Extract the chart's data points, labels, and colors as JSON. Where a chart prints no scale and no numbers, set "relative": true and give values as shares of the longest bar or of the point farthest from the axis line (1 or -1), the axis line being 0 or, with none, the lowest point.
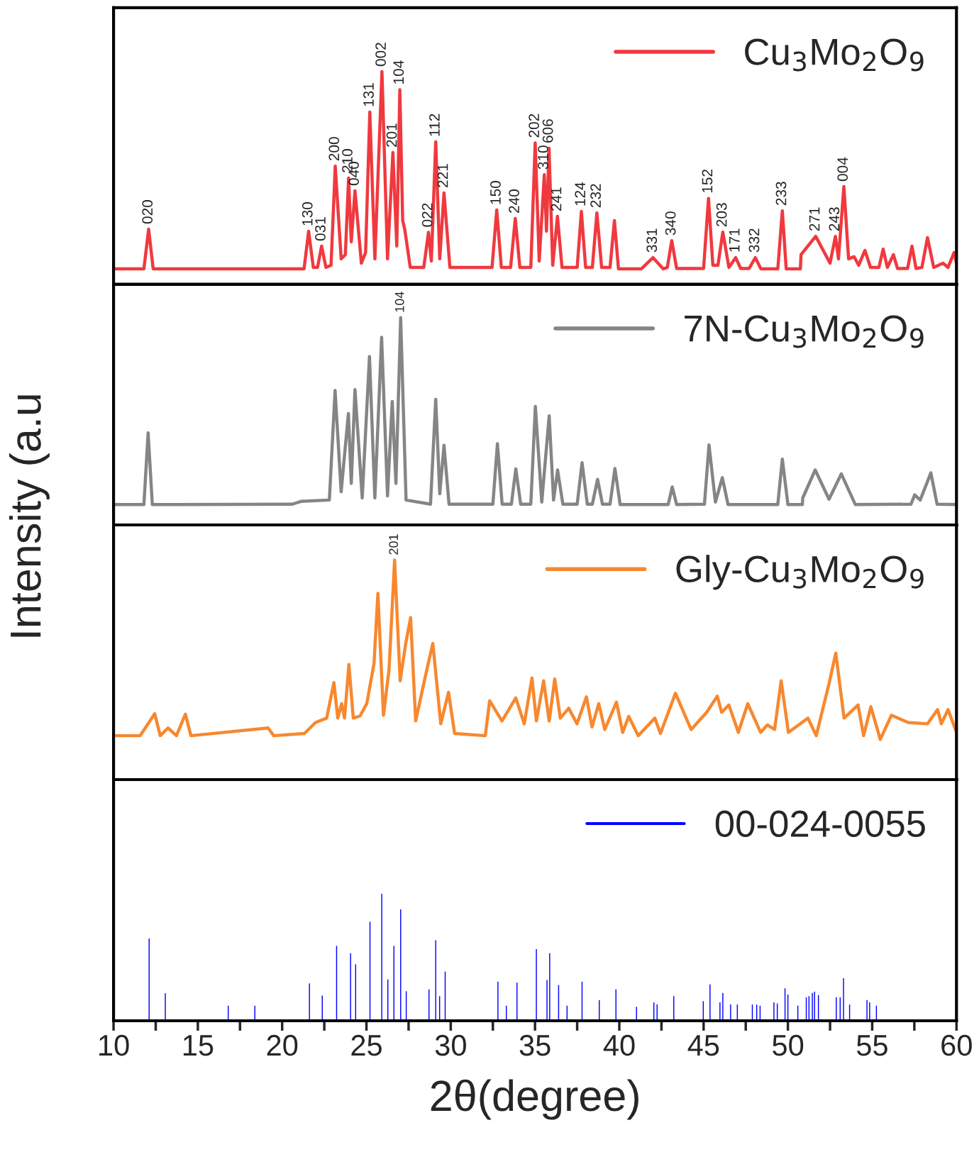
{
  "chart_data": [
    {
      "type": "line",
      "relative": true,
      "xlim": [
        10,
        60
      ],
      "tick_labels": false,
      "legend": "top right",
      "grid": false,
      "ylabel": "Intensity (a.u",
      "series": [
        {
          "name": "Cu$_{3}$Mo$_{2}$O$_{9}$",
          "color": "#f0393f",
          "x": [
            10,
            11.8,
            12.08,
            12.35,
            21.3,
            21.57,
            21.85,
            22.1,
            22.34,
            22.6,
            22.9,
            23.15,
            23.5,
            23.75,
            23.94,
            24.1,
            24.32,
            24.7,
            24.95,
            25.2,
            25.5,
            25.92,
            26.25,
            26.57,
            26.8,
            26.98,
            27.15,
            27.27,
            27.6,
            28.4,
            28.68,
            28.85,
            29.11,
            29.35,
            29.6,
            29.95,
            32.45,
            32.73,
            33.0,
            33.55,
            33.83,
            34.1,
            34.75,
            35.01,
            35.25,
            35.55,
            35.68,
            35.83,
            36.05,
            36.33,
            36.6,
            37.5,
            37.75,
            38.0,
            38.4,
            38.67,
            38.95,
            39.45,
            39.71,
            39.95,
            41.3,
            42.0,
            42.6,
            42.85,
            43.11,
            43.4,
            45.0,
            45.29,
            45.55,
            45.85,
            46.14,
            46.5,
            46.9,
            47.2,
            47.7,
            48.07,
            48.4,
            49.4,
            49.67,
            49.9,
            50.74,
            50.78,
            51.65,
            52.5,
            52.82,
            53.0,
            53.32,
            53.6,
            53.93,
            54.2,
            54.57,
            54.9,
            55.4,
            55.65,
            55.9,
            56.26,
            56.5,
            57.1,
            57.36,
            57.6,
            57.95,
            58.28,
            58.65,
            59.2,
            59.5,
            59.86,
            60
          ],
          "values": [
            0.073,
            0.073,
            0.26,
            0.073,
            0.073,
            0.25,
            0.08,
            0.08,
            0.18,
            0.08,
            0.09,
            0.556,
            0.12,
            0.14,
            0.5,
            0.2,
            0.44,
            0.1,
            0.15,
            0.81,
            0.12,
            1.0,
            0.12,
            0.62,
            0.18,
            0.915,
            0.3,
            0.26,
            0.08,
            0.08,
            0.245,
            0.11,
            0.67,
            0.12,
            0.43,
            0.08,
            0.08,
            0.35,
            0.08,
            0.08,
            0.31,
            0.08,
            0.08,
            0.665,
            0.11,
            0.516,
            0.25,
            0.64,
            0.09,
            0.32,
            0.08,
            0.08,
            0.343,
            0.08,
            0.08,
            0.336,
            0.08,
            0.08,
            0.3,
            0.073,
            0.073,
            0.126,
            0.073,
            0.08,
            0.206,
            0.075,
            0.075,
            0.404,
            0.09,
            0.09,
            0.246,
            0.08,
            0.126,
            0.075,
            0.075,
            0.126,
            0.073,
            0.073,
            0.346,
            0.073,
            0.073,
            0.14,
            0.226,
            0.1,
            0.226,
            0.12,
            0.46,
            0.12,
            0.13,
            0.09,
            0.16,
            0.08,
            0.08,
            0.166,
            0.08,
            0.14,
            0.075,
            0.075,
            0.18,
            0.075,
            0.08,
            0.22,
            0.08,
            0.1,
            0.08,
            0.15,
            0.1
          ]
        }
      ],
      "annotations": [
        {
          "text": "020",
          "x": 12.08,
          "y": 0.26
        },
        {
          "text": "130",
          "x": 21.57,
          "y": 0.25
        },
        {
          "text": "031",
          "x": 22.34,
          "y": 0.18
        },
        {
          "text": "200",
          "x": 23.15,
          "y": 0.556
        },
        {
          "text": "210",
          "x": 23.94,
          "y": 0.5
        },
        {
          "text": "040",
          "x": 24.32,
          "y": 0.44
        },
        {
          "text": "131",
          "x": 25.2,
          "y": 0.81
        },
        {
          "text": "002",
          "x": 25.92,
          "y": 1.0
        },
        {
          "text": "201",
          "x": 26.57,
          "y": 0.62
        },
        {
          "text": "104",
          "x": 26.98,
          "y": 0.915
        },
        {
          "text": "022",
          "x": 28.68,
          "y": 0.245
        },
        {
          "text": "112",
          "x": 29.11,
          "y": 0.67
        },
        {
          "text": "221",
          "x": 29.6,
          "y": 0.43
        },
        {
          "text": "150",
          "x": 32.73,
          "y": 0.35
        },
        {
          "text": "240",
          "x": 33.83,
          "y": 0.31
        },
        {
          "text": "202",
          "x": 35.01,
          "y": 0.665
        },
        {
          "text": "310",
          "x": 35.55,
          "y": 0.516
        },
        {
          "text": "606",
          "x": 35.83,
          "y": 0.64
        },
        {
          "text": "241",
          "x": 36.33,
          "y": 0.32
        },
        {
          "text": "124",
          "x": 37.75,
          "y": 0.343
        },
        {
          "text": "232",
          "x": 38.67,
          "y": 0.336
        },
        {
          "text": "331",
          "x": 42.0,
          "y": 0.126
        },
        {
          "text": "340",
          "x": 43.11,
          "y": 0.206
        },
        {
          "text": "152",
          "x": 45.29,
          "y": 0.404
        },
        {
          "text": "203",
          "x": 46.14,
          "y": 0.246
        },
        {
          "text": "171",
          "x": 46.9,
          "y": 0.126
        },
        {
          "text": "332",
          "x": 48.07,
          "y": 0.126
        },
        {
          "text": "233",
          "x": 49.67,
          "y": 0.346
        },
        {
          "text": "271",
          "x": 51.65,
          "y": 0.226
        },
        {
          "text": "243",
          "x": 52.82,
          "y": 0.226
        },
        {
          "text": "004",
          "x": 53.32,
          "y": 0.46
        }
      ]
    },
    {
      "type": "line",
      "relative": true,
      "xlim": [
        10,
        60
      ],
      "tick_labels": false,
      "legend": "top right",
      "grid": false,
      "series": [
        {
          "name": "7N-Cu$_{3}$Mo$_{2}$O$_{9}$",
          "color": "#858585",
          "x": [
            10,
            11.8,
            12.05,
            12.3,
            20.6,
            21.15,
            22.8,
            23.14,
            23.5,
            23.93,
            24.1,
            24.32,
            24.75,
            25.18,
            25.5,
            25.9,
            26.25,
            26.53,
            26.75,
            27.03,
            27.35,
            28.8,
            29.11,
            29.35,
            29.6,
            29.9,
            32.5,
            32.77,
            33.05,
            33.6,
            33.86,
            34.15,
            34.75,
            35.02,
            35.4,
            35.84,
            36.1,
            36.34,
            36.65,
            37.5,
            37.79,
            38.1,
            38.4,
            38.71,
            39.0,
            39.45,
            39.74,
            40.05,
            42.9,
            43.14,
            43.4,
            45.05,
            45.32,
            45.7,
            46.11,
            46.45,
            49.4,
            49.67,
            50.0,
            50.86,
            50.88,
            51.62,
            52.44,
            53.17,
            54.0,
            57.3,
            57.52,
            57.85,
            58.48,
            58.85,
            60
          ],
          "values": [
            0.098,
            0.098,
            0.444,
            0.098,
            0.1,
            0.114,
            0.12,
            0.648,
            0.16,
            0.537,
            0.2,
            0.653,
            0.13,
            0.812,
            0.13,
            0.905,
            0.14,
            0.595,
            0.2,
            1.0,
            0.12,
            0.1,
            0.606,
            0.15,
            0.384,
            0.1,
            0.1,
            0.392,
            0.1,
            0.1,
            0.27,
            0.1,
            0.1,
            0.571,
            0.11,
            0.526,
            0.12,
            0.265,
            0.1,
            0.1,
            0.3,
            0.1,
            0.1,
            0.22,
            0.1,
            0.1,
            0.272,
            0.098,
            0.098,
            0.183,
            0.098,
            0.1,
            0.386,
            0.11,
            0.228,
            0.098,
            0.098,
            0.317,
            0.098,
            0.098,
            0.13,
            0.265,
            0.124,
            0.246,
            0.098,
            0.1,
            0.145,
            0.12,
            0.251,
            0.1,
            0.098
          ]
        }
      ],
      "annotations": [
        {
          "text": "104",
          "x": 27.03,
          "y": 1.0
        }
      ]
    },
    {
      "type": "line",
      "relative": true,
      "xlim": [
        10,
        60
      ],
      "tick_labels": false,
      "legend": "top right",
      "grid": false,
      "series": [
        {
          "name": "Gly-Cu$_{3}$Mo$_{2}$O$_{9}$",
          "color": "#f7882f",
          "x": [
            10,
            11.58,
            12.44,
            12.77,
            13.23,
            13.73,
            14.26,
            14.59,
            19.17,
            19.5,
            21.32,
            21.98,
            22.64,
            23.07,
            23.3,
            23.53,
            23.7,
            23.96,
            24.22,
            24.62,
            25.02,
            25.45,
            25.68,
            26.01,
            26.34,
            26.67,
            27.0,
            27.33,
            27.62,
            27.92,
            28.58,
            28.94,
            29.41,
            29.87,
            30.23,
            32.05,
            32.31,
            33.04,
            33.86,
            34.36,
            34.82,
            35.08,
            35.51,
            35.84,
            36.17,
            36.5,
            37.0,
            37.49,
            38.05,
            38.38,
            38.78,
            39.14,
            39.83,
            40.2,
            40.56,
            41.12,
            42.11,
            42.44,
            43.33,
            44.26,
            45.18,
            45.81,
            46.07,
            46.5,
            47.06,
            47.62,
            48.38,
            48.78,
            49.21,
            49.6,
            50.03,
            51.19,
            51.68,
            52.44,
            52.84,
            53.33,
            54.16,
            54.49,
            54.92,
            55.48,
            56.14,
            57.13,
            58.28,
            58.88,
            59.1,
            59.5,
            60
          ],
          "values": [
            0.2,
            0.2,
            0.3,
            0.2,
            0.235,
            0.2,
            0.298,
            0.2,
            0.235,
            0.2,
            0.21,
            0.26,
            0.28,
            0.442,
            0.28,
            0.346,
            0.28,
            0.524,
            0.28,
            0.29,
            0.346,
            0.529,
            0.848,
            0.293,
            0.5,
            1.0,
            0.45,
            0.62,
            0.738,
            0.267,
            0.5,
            0.62,
            0.254,
            0.398,
            0.21,
            0.2,
            0.359,
            0.267,
            0.372,
            0.254,
            0.463,
            0.267,
            0.45,
            0.267,
            0.458,
            0.28,
            0.325,
            0.254,
            0.377,
            0.24,
            0.346,
            0.228,
            0.353,
            0.215,
            0.288,
            0.2,
            0.28,
            0.21,
            0.393,
            0.228,
            0.306,
            0.38,
            0.306,
            0.34,
            0.215,
            0.346,
            0.215,
            0.249,
            0.228,
            0.45,
            0.215,
            0.28,
            0.2,
            0.437,
            0.576,
            0.28,
            0.34,
            0.2,
            0.332,
            0.183,
            0.293,
            0.26,
            0.254,
            0.319,
            0.254,
            0.319,
            0.215
          ]
        }
      ],
      "annotations": [
        {
          "text": "201",
          "x": 26.67,
          "y": 1.0
        }
      ]
    },
    {
      "type": "bar",
      "relative": true,
      "xlim": [
        10,
        60
      ],
      "tick_labels": "x",
      "legend": "top right",
      "grid": false,
      "xlabel": "2θ(degree)",
      "xticks": [
        10,
        {
          "value": 12.5,
          "label": null
        },
        15,
        {
          "value": 17.5,
          "label": null
        },
        20,
        {
          "value": 22.5,
          "label": null
        },
        25,
        {
          "value": 27.5,
          "label": null
        },
        30,
        {
          "value": 32.5,
          "label": null
        },
        35,
        {
          "value": 37.5,
          "label": null
        },
        40,
        {
          "value": 42.5,
          "label": null
        },
        45,
        {
          "value": 47.5,
          "label": null
        },
        50,
        {
          "value": 52.5,
          "label": null
        },
        55,
        {
          "value": 57.5,
          "label": null
        },
        60
      ],
      "series": [
        {
          "name": "00-024-0055",
          "color": "#0000ff",
          "x": [
            12.11,
            13.07,
            16.8,
            18.38,
            21.62,
            22.38,
            23.23,
            24.06,
            24.36,
            25.21,
            25.91,
            26.27,
            26.63,
            27.03,
            27.36,
            28.71,
            29.11,
            29.34,
            29.67,
            32.8,
            33.3,
            33.93,
            35.08,
            35.71,
            35.87,
            36.4,
            36.9,
            37.79,
            38.81,
            39.8,
            41.02,
            42.05,
            42.24,
            43.23,
            44.98,
            45.38,
            45.97,
            46.14,
            46.6,
            47.0,
            47.89,
            48.15,
            48.35,
            49.17,
            49.37,
            49.83,
            50.0,
            50.59,
            51.09,
            51.25,
            51.45,
            51.58,
            51.81,
            52.87,
            53.1,
            53.3,
            53.66,
            54.69,
            54.85,
            55.25
          ],
          "values": [
            0.648,
            0.216,
            0.119,
            0.119,
            0.295,
            0.198,
            0.59,
            0.533,
            0.445,
            0.78,
            1.0,
            0.326,
            0.59,
            0.877,
            0.233,
            0.247,
            0.634,
            0.194,
            0.388,
            0.308,
            0.119,
            0.3,
            0.564,
            0.322,
            0.533,
            0.282,
            0.119,
            0.308,
            0.163,
            0.247,
            0.11,
            0.145,
            0.128,
            0.194,
            0.154,
            0.286,
            0.145,
            0.22,
            0.128,
            0.128,
            0.128,
            0.128,
            0.119,
            0.145,
            0.137,
            0.256,
            0.207,
            0.119,
            0.185,
            0.194,
            0.22,
            0.229,
            0.203,
            0.185,
            0.185,
            0.335,
            0.128,
            0.163,
            0.145,
            0.119
          ]
        }
      ]
    }
  ]
}
